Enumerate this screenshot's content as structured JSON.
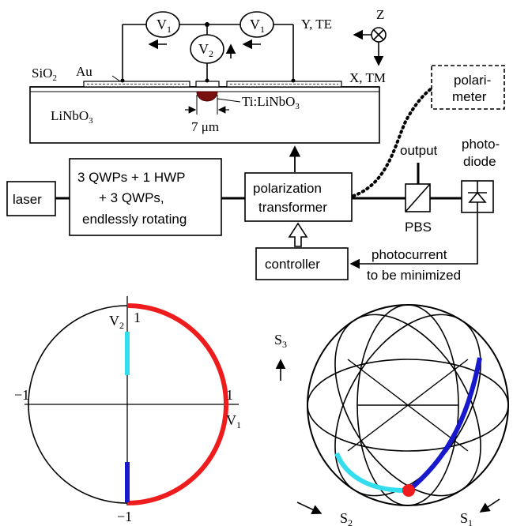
{
  "top_device": {
    "v1_left": "V",
    "v1_left_sub": "1",
    "v2": "V",
    "v2_sub": "2",
    "v1_right": "V",
    "v1_right_sub": "1",
    "sio2": "SiO",
    "sio2_sub": "2",
    "au": "Au",
    "linbo3": "LiNbO",
    "linbo3_sub": "3",
    "ti_linbo3": "Ti:LiNbO",
    "ti_linbo3_sub": "3",
    "width": "7 μm"
  },
  "axes_legend": {
    "y_te": "Y, TE",
    "z": "Z",
    "x_tm": "X, TM"
  },
  "setup": {
    "laser": "laser",
    "waveplates": [
      "3 QWPs + 1 HWP",
      "+ 3 QWPs,",
      "endlessly rotating"
    ],
    "transformer": [
      "polarization",
      "transformer"
    ],
    "controller": "controller",
    "polarimeter": [
      "polari-",
      "meter"
    ],
    "output": "output",
    "photodiode": [
      "photo-",
      "diode"
    ],
    "pbs": "PBS",
    "photocurrent": [
      "photocurrent",
      "to be minimized"
    ]
  },
  "voltage_plot": {
    "v2_axis": "V",
    "v2_axis_sub": "2",
    "v1_axis": "V",
    "v1_axis_sub": "1",
    "tick_top": "1",
    "tick_right": "1",
    "tick_left": "−1",
    "tick_bottom": "−1",
    "colors": {
      "red": "#ee1c1c",
      "cyan": "#33ddee",
      "blue": "#1818cc"
    }
  },
  "sphere": {
    "s3": "S",
    "s3_sub": "3",
    "s2": "S",
    "s2_sub": "2",
    "s1": "S",
    "s1_sub": "1",
    "colors": {
      "red": "#ee1c1c",
      "cyan": "#33ddee",
      "blue": "#1818cc"
    }
  }
}
